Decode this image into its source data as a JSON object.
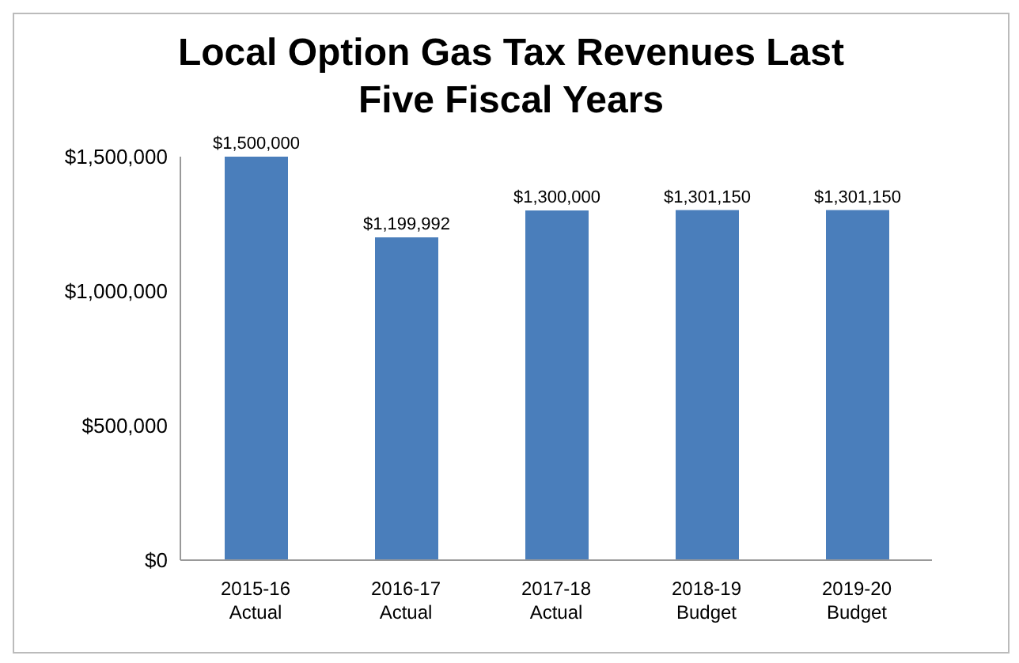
{
  "chart_data": {
    "type": "bar",
    "title": "Local Option Gas Tax Revenues Last Five Fiscal Years",
    "categories": [
      "2015-16 Actual",
      "2016-17 Actual",
      "2017-18 Actual",
      "2018-19 Budget",
      "2019-20 Budget"
    ],
    "values": [
      1500000,
      1199992,
      1300000,
      1301150,
      1301150
    ],
    "value_labels": [
      "$1,500,000",
      "$1,199,992",
      "$1,300,000",
      "$1,301,150",
      "$1,301,150"
    ],
    "color": "#4a7ebb",
    "ylim": [
      0,
      1500000
    ],
    "yticks": [
      {
        "value": 0,
        "label": "$0"
      },
      {
        "value": 500000,
        "label": "$500,000"
      },
      {
        "value": 1000000,
        "label": "$1,000,000"
      },
      {
        "value": 1500000,
        "label": "$1,500,000"
      }
    ],
    "grid": false
  }
}
